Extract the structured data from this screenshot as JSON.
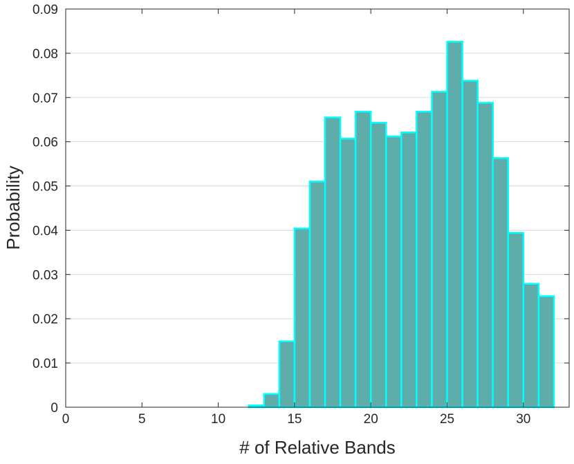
{
  "chart_data": {
    "type": "bar",
    "xlabel": "# of Relative Bands",
    "ylabel": "Probability",
    "xlim": [
      0,
      33
    ],
    "ylim": [
      0,
      0.09
    ],
    "xticks": [
      0,
      5,
      10,
      15,
      20,
      25,
      30
    ],
    "yticks": [
      0,
      0.01,
      0.02,
      0.03,
      0.04,
      0.05,
      0.06,
      0.07,
      0.08,
      0.09
    ],
    "ytick_labels": [
      "0",
      "0.01",
      "0.02",
      "0.03",
      "0.04",
      "0.05",
      "0.06",
      "0.07",
      "0.08",
      "0.09"
    ],
    "grid": "horizontal",
    "bin_width": 1,
    "bins": [
      {
        "start": 12,
        "value": 0.0004
      },
      {
        "start": 13,
        "value": 0.003
      },
      {
        "start": 14,
        "value": 0.0149
      },
      {
        "start": 15,
        "value": 0.0404
      },
      {
        "start": 16,
        "value": 0.051
      },
      {
        "start": 17,
        "value": 0.0655
      },
      {
        "start": 18,
        "value": 0.0607
      },
      {
        "start": 19,
        "value": 0.0668
      },
      {
        "start": 20,
        "value": 0.0643
      },
      {
        "start": 21,
        "value": 0.0612
      },
      {
        "start": 22,
        "value": 0.0621
      },
      {
        "start": 23,
        "value": 0.0668
      },
      {
        "start": 24,
        "value": 0.0713
      },
      {
        "start": 25,
        "value": 0.0826
      },
      {
        "start": 26,
        "value": 0.0738
      },
      {
        "start": 27,
        "value": 0.0688
      },
      {
        "start": 28,
        "value": 0.0563
      },
      {
        "start": 29,
        "value": 0.0394
      },
      {
        "start": 30,
        "value": 0.0279
      },
      {
        "start": 31,
        "value": 0.0251
      }
    ],
    "colors": {
      "bar_fill": "#5fadaa",
      "bar_edge": "#00ffff",
      "grid": "#dcdcdc",
      "axis": "#262626"
    }
  }
}
